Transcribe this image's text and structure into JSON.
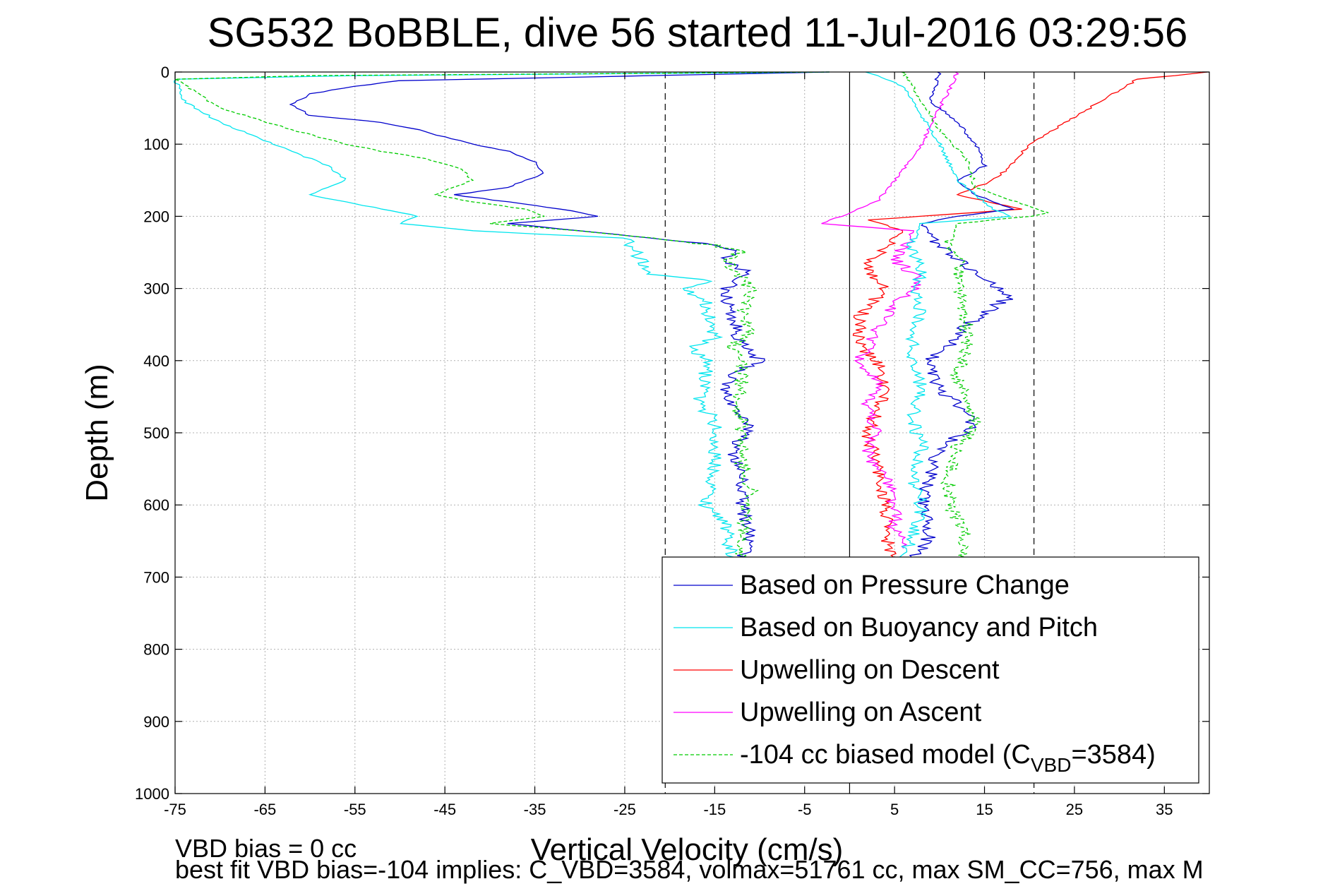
{
  "chart_data": {
    "type": "line",
    "title": "SG532 BoBBLE, dive 56 started 11-Jul-2016 03:29:56",
    "xlabel": "Vertical Velocity (cm/s)",
    "ylabel": "Depth (m)",
    "xlim": [
      -75,
      40
    ],
    "ylim": [
      0,
      1000
    ],
    "y_reversed": true,
    "xticks": [
      -75,
      -65,
      -55,
      -45,
      -35,
      -25,
      -15,
      -5,
      5,
      15,
      25,
      35
    ],
    "yticks": [
      0,
      100,
      200,
      300,
      400,
      500,
      600,
      700,
      800,
      900,
      1000
    ],
    "grid": true,
    "vertical_lines": [
      {
        "x": 0,
        "style": "solid"
      },
      {
        "x": -20.5,
        "style": "dashed"
      },
      {
        "x": 20.5,
        "style": "dashed"
      }
    ],
    "legend_position": "lower-right",
    "series": [
      {
        "name": "Based on Pressure Change",
        "color": "#0000cc",
        "dash": "solid",
        "points": [
          [
            -2,
            0
          ],
          [
            -50,
            12
          ],
          [
            -55,
            20
          ],
          [
            -60,
            30
          ],
          [
            -62,
            45
          ],
          [
            -60,
            60
          ],
          [
            -52,
            70
          ],
          [
            -48,
            80
          ],
          [
            -45,
            90
          ],
          [
            -42,
            100
          ],
          [
            -38,
            110
          ],
          [
            -35,
            125
          ],
          [
            -34,
            140
          ],
          [
            -36,
            150
          ],
          [
            -38,
            160
          ],
          [
            -44,
            170
          ],
          [
            -38,
            180
          ],
          [
            -32,
            190
          ],
          [
            -28,
            200
          ],
          [
            -38,
            210
          ],
          [
            -30,
            220
          ],
          [
            -22,
            230
          ],
          [
            -15,
            240
          ],
          [
            -12,
            250
          ],
          [
            -14,
            260
          ],
          [
            -11,
            280
          ],
          [
            -14,
            300
          ],
          [
            -13,
            340
          ],
          [
            -12,
            380
          ],
          [
            -10,
            400
          ],
          [
            -13,
            420
          ],
          [
            -14,
            440
          ],
          [
            -13,
            460
          ],
          [
            -12,
            480
          ],
          [
            -11,
            500
          ],
          [
            -13,
            520
          ],
          [
            -12,
            560
          ],
          [
            -12,
            600
          ],
          [
            -11,
            640
          ],
          [
            -12,
            680
          ]
        ]
      },
      {
        "name": "Based on Buoyancy and Pitch",
        "color": "#00e5ee",
        "dash": "solid",
        "points": [
          [
            -2,
            0
          ],
          [
            -55,
            5
          ],
          [
            -75,
            10
          ],
          [
            -74,
            40
          ],
          [
            -70,
            70
          ],
          [
            -66,
            90
          ],
          [
            -62,
            110
          ],
          [
            -58,
            130
          ],
          [
            -56,
            150
          ],
          [
            -60,
            170
          ],
          [
            -52,
            190
          ],
          [
            -48,
            200
          ],
          [
            -50,
            210
          ],
          [
            -42,
            220
          ],
          [
            -34,
            225
          ],
          [
            -25,
            230
          ],
          [
            -22,
            280
          ],
          [
            -15,
            290
          ],
          [
            -18,
            300
          ],
          [
            -16,
            320
          ],
          [
            -15,
            370
          ],
          [
            -18,
            380
          ],
          [
            -16,
            400
          ],
          [
            -16,
            440
          ],
          [
            -17,
            460
          ],
          [
            -15,
            480
          ],
          [
            -15,
            560
          ],
          [
            -16,
            600
          ],
          [
            -14,
            620
          ],
          [
            -13,
            680
          ]
        ]
      },
      {
        "name": "Upwelling on Descent",
        "color": "#ff0000",
        "dash": "solid",
        "points": [
          [
            40,
            0
          ],
          [
            32,
            10
          ],
          [
            28,
            40
          ],
          [
            24,
            70
          ],
          [
            20,
            100
          ],
          [
            18,
            130
          ],
          [
            16,
            150
          ],
          [
            12,
            170
          ],
          [
            19,
            190
          ],
          [
            8,
            200
          ],
          [
            2,
            205
          ],
          [
            6,
            220
          ],
          [
            4,
            240
          ],
          [
            2,
            270
          ],
          [
            4,
            300
          ],
          [
            1,
            340
          ],
          [
            1,
            380
          ],
          [
            3,
            400
          ],
          [
            4,
            440
          ],
          [
            2,
            500
          ],
          [
            3,
            540
          ],
          [
            4,
            600
          ],
          [
            4,
            640
          ],
          [
            5,
            680
          ]
        ]
      },
      {
        "name": "Upwelling on Ascent",
        "color": "#ff00ff",
        "dash": "solid",
        "points": [
          [
            12,
            0
          ],
          [
            10,
            50
          ],
          [
            8,
            100
          ],
          [
            5,
            150
          ],
          [
            3,
            180
          ],
          [
            -3,
            210
          ],
          [
            7,
            220
          ],
          [
            5,
            260
          ],
          [
            8,
            290
          ],
          [
            5,
            320
          ],
          [
            3,
            360
          ],
          [
            1,
            400
          ],
          [
            3,
            430
          ],
          [
            2,
            460
          ],
          [
            3,
            500
          ],
          [
            2,
            530
          ],
          [
            4,
            560
          ],
          [
            5,
            600
          ],
          [
            5,
            630
          ],
          [
            6,
            660
          ]
        ]
      },
      {
        "name": "-104 cc biased model (C_VBD=3584)",
        "color": "#00cc00",
        "dash": "dashed",
        "points": [
          [
            -2,
            0
          ],
          [
            -60,
            5
          ],
          [
            -75,
            10
          ],
          [
            -70,
            50
          ],
          [
            -62,
            80
          ],
          [
            -56,
            100
          ],
          [
            -52,
            110
          ],
          [
            -47,
            120
          ],
          [
            -43,
            135
          ],
          [
            -42,
            150
          ],
          [
            -46,
            170
          ],
          [
            -42,
            180
          ],
          [
            -36,
            190
          ],
          [
            -34,
            200
          ],
          [
            -40,
            210
          ],
          [
            -30,
            220
          ],
          [
            -22,
            230
          ],
          [
            -15,
            240
          ],
          [
            -12,
            250
          ],
          [
            -14,
            260
          ],
          [
            -11,
            300
          ],
          [
            -12,
            340
          ],
          [
            -11,
            360
          ],
          [
            -13,
            380
          ],
          [
            -12,
            400
          ],
          [
            -12,
            440
          ],
          [
            -13,
            460
          ],
          [
            -12,
            480
          ],
          [
            -12,
            540
          ],
          [
            -11,
            580
          ],
          [
            -12,
            640
          ],
          [
            -12,
            680
          ]
        ]
      },
      {
        "color": "#0000cc",
        "dash": "solid",
        "points": [
          [
            10,
            0
          ],
          [
            9,
            40
          ],
          [
            12,
            70
          ],
          [
            14,
            100
          ],
          [
            15,
            130
          ],
          [
            12,
            150
          ],
          [
            14,
            170
          ],
          [
            18,
            190
          ],
          [
            12,
            200
          ],
          [
            8,
            210
          ],
          [
            10,
            240
          ],
          [
            12,
            260
          ],
          [
            14,
            280
          ],
          [
            18,
            310
          ],
          [
            13,
            350
          ],
          [
            11,
            380
          ],
          [
            9,
            400
          ],
          [
            10,
            440
          ],
          [
            12,
            460
          ],
          [
            14,
            490
          ],
          [
            10,
            520
          ],
          [
            9,
            560
          ],
          [
            8,
            600
          ],
          [
            9,
            640
          ],
          [
            7,
            680
          ]
        ]
      },
      {
        "color": "#00e5ee",
        "dash": "solid",
        "points": [
          [
            2,
            0
          ],
          [
            6,
            20
          ],
          [
            8,
            60
          ],
          [
            10,
            100
          ],
          [
            12,
            150
          ],
          [
            16,
            190
          ],
          [
            18,
            200
          ],
          [
            8,
            210
          ],
          [
            7,
            240
          ],
          [
            8,
            280
          ],
          [
            7,
            300
          ],
          [
            8,
            330
          ],
          [
            7,
            360
          ],
          [
            7,
            400
          ],
          [
            8,
            440
          ],
          [
            7,
            480
          ],
          [
            8,
            520
          ],
          [
            7,
            560
          ],
          [
            8,
            600
          ],
          [
            7,
            640
          ],
          [
            6,
            680
          ]
        ]
      },
      {
        "color": "#00cc00",
        "dash": "dashed",
        "points": [
          [
            6,
            0
          ],
          [
            8,
            40
          ],
          [
            10,
            80
          ],
          [
            13,
            120
          ],
          [
            14,
            160
          ],
          [
            22,
            195
          ],
          [
            20,
            200
          ],
          [
            12,
            210
          ],
          [
            11,
            240
          ],
          [
            12,
            260
          ],
          [
            12,
            300
          ],
          [
            13,
            340
          ],
          [
            13,
            380
          ],
          [
            12,
            420
          ],
          [
            13,
            460
          ],
          [
            14,
            490
          ],
          [
            12,
            520
          ],
          [
            11,
            560
          ],
          [
            11,
            600
          ],
          [
            13,
            640
          ],
          [
            12,
            680
          ]
        ]
      }
    ]
  },
  "footer": {
    "line1": "VBD bias = 0 cc",
    "line2": "best fit VBD bias=-104 implies: C_VBD=3584, volmax=51761 cc, max SM_CC=756, max M"
  }
}
